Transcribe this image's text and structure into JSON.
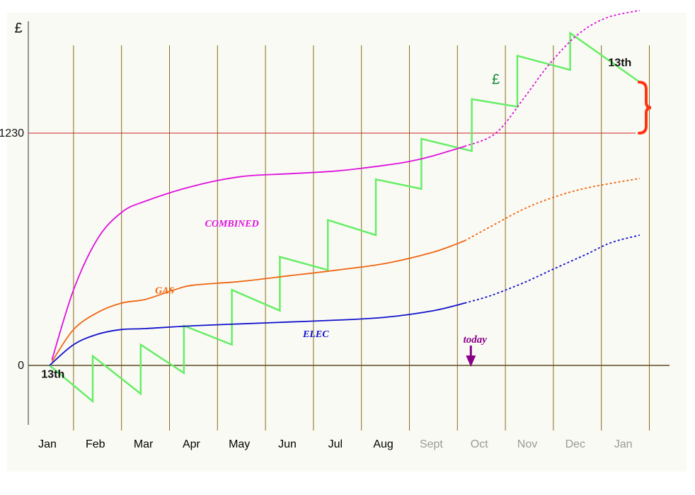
{
  "chart_data": {
    "type": "line",
    "y_unit_label": "£",
    "y_ticks": [
      {
        "label": "0",
        "value": 0
      },
      {
        "label": "1230",
        "value": 1230
      }
    ],
    "threshold": {
      "value": 1230,
      "color": "#cc2222"
    },
    "months": [
      {
        "label": "Jan",
        "color": "#000000"
      },
      {
        "label": "Feb",
        "color": "#000000"
      },
      {
        "label": "Mar",
        "color": "#000000"
      },
      {
        "label": "Apr",
        "color": "#000000"
      },
      {
        "label": "May",
        "color": "#000000"
      },
      {
        "label": "Jun",
        "color": "#000000"
      },
      {
        "label": "Jul",
        "color": "#000000"
      },
      {
        "label": "Aug",
        "color": "#000000"
      },
      {
        "label": "Sept",
        "color": "#999999"
      },
      {
        "label": "Oct",
        "color": "#999999"
      },
      {
        "label": "Nov",
        "color": "#999999"
      },
      {
        "label": "Dec",
        "color": "#999999"
      },
      {
        "label": "Jan",
        "color": "#999999"
      }
    ],
    "today": {
      "label": "today",
      "x": 8.78,
      "color": "#880088"
    },
    "series": [
      {
        "name": "COMBINED",
        "color": "#dd11dd",
        "label_at": [
          3.8,
          735
        ],
        "actual": [
          [
            0.05,
            30
          ],
          [
            0.5,
            400
          ],
          [
            1,
            670
          ],
          [
            1.5,
            810
          ],
          [
            2,
            870
          ],
          [
            3,
            950
          ],
          [
            4,
            1000
          ],
          [
            5,
            1015
          ],
          [
            6,
            1030
          ],
          [
            7,
            1060
          ],
          [
            7.5,
            1080
          ],
          [
            8,
            1110
          ],
          [
            8.65,
            1160
          ]
        ],
        "forecast": [
          [
            8.65,
            1160
          ],
          [
            9.3,
            1230
          ],
          [
            9.9,
            1420
          ],
          [
            10.4,
            1590
          ],
          [
            11,
            1750
          ],
          [
            11.6,
            1840
          ],
          [
            12.3,
            1880
          ]
        ]
      },
      {
        "name": "GAS",
        "color": "#ee6611",
        "label_at": [
          2.4,
          380
        ],
        "actual": [
          [
            0.05,
            20
          ],
          [
            0.5,
            190
          ],
          [
            1,
            280
          ],
          [
            1.5,
            330
          ],
          [
            2,
            350
          ],
          [
            2.6,
            400
          ],
          [
            3,
            425
          ],
          [
            4,
            445
          ],
          [
            5,
            475
          ],
          [
            6,
            505
          ],
          [
            7,
            540
          ],
          [
            8,
            600
          ],
          [
            8.65,
            660
          ]
        ],
        "forecast": [
          [
            8.65,
            660
          ],
          [
            9.3,
            750
          ],
          [
            9.9,
            830
          ],
          [
            10.5,
            890
          ],
          [
            11.2,
            940
          ],
          [
            12.3,
            990
          ]
        ]
      },
      {
        "name": "ELEC",
        "color": "#1111cc",
        "label_at": [
          5.55,
          150
        ],
        "actual": [
          [
            0.0,
            0
          ],
          [
            0.5,
            110
          ],
          [
            1,
            165
          ],
          [
            1.5,
            190
          ],
          [
            2,
            195
          ],
          [
            3,
            210
          ],
          [
            4,
            220
          ],
          [
            5,
            230
          ],
          [
            6,
            240
          ],
          [
            7,
            255
          ],
          [
            8,
            290
          ],
          [
            8.65,
            330
          ]
        ],
        "forecast": [
          [
            8.65,
            330
          ],
          [
            9.2,
            370
          ],
          [
            9.9,
            440
          ],
          [
            10.5,
            510
          ],
          [
            11.2,
            590
          ],
          [
            11.7,
            650
          ],
          [
            12.3,
            690
          ]
        ]
      }
    ],
    "balance": {
      "name": "£",
      "color": "#66ee66",
      "label_color": "#118833",
      "label_at": [
        9.3,
        1490
      ],
      "points": [
        [
          0,
          0
        ],
        [
          0.9,
          -190
        ],
        [
          0.9,
          50
        ],
        [
          1.9,
          -150
        ],
        [
          1.9,
          110
        ],
        [
          2.8,
          -40
        ],
        [
          2.8,
          210
        ],
        [
          3.8,
          110
        ],
        [
          3.8,
          400
        ],
        [
          4.8,
          290
        ],
        [
          4.8,
          575
        ],
        [
          5.8,
          505
        ],
        [
          5.8,
          770
        ],
        [
          6.8,
          690
        ],
        [
          6.8,
          985
        ],
        [
          7.75,
          935
        ],
        [
          7.75,
          1200
        ],
        [
          8.8,
          1135
        ],
        [
          8.8,
          1410
        ],
        [
          9.75,
          1370
        ],
        [
          9.75,
          1640
        ],
        [
          10.85,
          1565
        ],
        [
          10.85,
          1760
        ],
        [
          12.3,
          1500
        ]
      ]
    },
    "annotations": [
      {
        "text": "13th",
        "x": 0.05,
        "y": -65,
        "anchor": "start"
      },
      {
        "text": "13th",
        "x": 12.35,
        "y": 1585,
        "anchor": "end"
      }
    ],
    "brace": {
      "color": "#ff3311",
      "from": 1230,
      "to": 1500
    }
  }
}
